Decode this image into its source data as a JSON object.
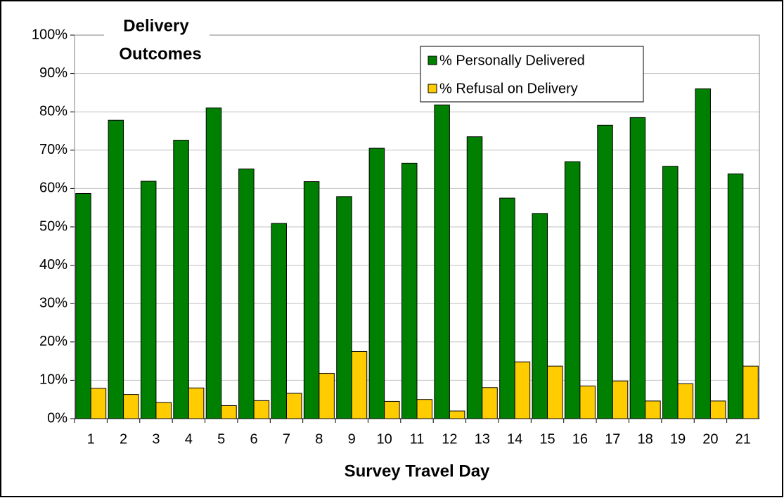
{
  "chart_data": {
    "type": "bar",
    "title": [
      "Delivery",
      "Outcomes"
    ],
    "x_label": "Survey Travel Day",
    "categories": [
      "1",
      "2",
      "3",
      "4",
      "5",
      "6",
      "7",
      "8",
      "9",
      "10",
      "11",
      "12",
      "13",
      "14",
      "15",
      "16",
      "17",
      "18",
      "19",
      "20",
      "21"
    ],
    "series": [
      {
        "name": "% Personally Delivered",
        "color": "#008000",
        "values": [
          58.7,
          77.8,
          61.9,
          72.6,
          81.0,
          65.1,
          50.9,
          61.8,
          57.9,
          70.5,
          66.6,
          81.8,
          73.5,
          57.5,
          53.5,
          67.0,
          76.5,
          78.5,
          65.8,
          86.0,
          63.8
        ]
      },
      {
        "name": "% Refusal on Delivery",
        "color": "#ffcc00",
        "values": [
          7.9,
          6.3,
          4.2,
          8.0,
          3.4,
          4.7,
          6.6,
          11.8,
          17.5,
          4.5,
          5.0,
          2.0,
          8.1,
          14.8,
          13.7,
          8.5,
          9.8,
          4.6,
          9.1,
          4.6,
          13.7
        ]
      }
    ],
    "ylim": [
      0,
      100
    ],
    "yticks": [
      {
        "value": 0,
        "label": "0%"
      },
      {
        "value": 10,
        "label": "10%"
      },
      {
        "value": 20,
        "label": "20%"
      },
      {
        "value": 30,
        "label": "30%"
      },
      {
        "value": 40,
        "label": "40%"
      },
      {
        "value": 50,
        "label": "50%"
      },
      {
        "value": 60,
        "label": "60%"
      },
      {
        "value": 70,
        "label": "70%"
      },
      {
        "value": 80,
        "label": "80%"
      },
      {
        "value": 90,
        "label": "90%"
      },
      {
        "value": 100,
        "label": "100%"
      }
    ],
    "grid": true,
    "legend": "top-right"
  }
}
